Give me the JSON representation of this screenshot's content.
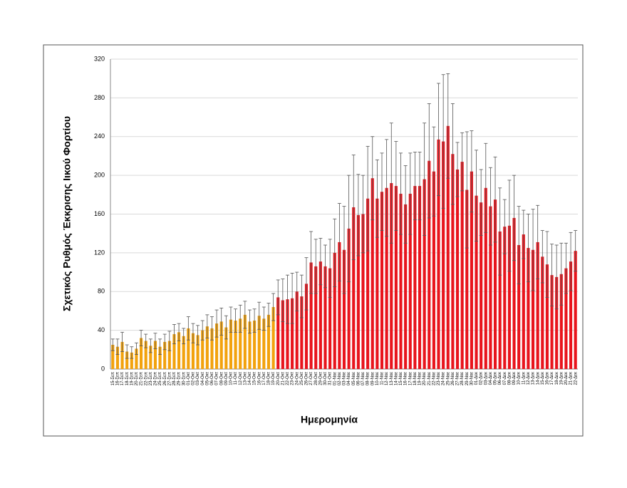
{
  "chart_data": {
    "type": "bar",
    "y_label": "Σχετικός Ρυθμός Έκκρισης Ιικού Φορτίου",
    "x_label": "Ημερομηνία",
    "categories": [
      "15-Σεπ",
      "16-Σεπ",
      "17-Σεπ",
      "18-Σεπ",
      "19-Σεπ",
      "20-Σεπ",
      "21-Σεπ",
      "22-Σεπ",
      "23-Σεπ",
      "24-Σεπ",
      "25-Σεπ",
      "26-Σεπ",
      "27-Σεπ",
      "28-Σεπ",
      "29-Σεπ",
      "30-Σεπ",
      "01-Οκτ",
      "02-Οκτ",
      "03-Οκτ",
      "04-Οκτ",
      "05-Οκτ",
      "06-Οκτ",
      "07-Οκτ",
      "08-Οκτ",
      "09-Οκτ",
      "10-Οκτ",
      "11-Οκτ",
      "12-Οκτ",
      "13-Οκτ",
      "14-Οκτ",
      "15-Οκτ",
      "16-Οκτ",
      "17-Οκτ",
      "18-Οκτ",
      "19-Οκτ",
      "20-Οκτ",
      "21-Οκτ",
      "22-Οκτ",
      "23-Οκτ",
      "24-Οκτ",
      "25-Οκτ",
      "26-Οκτ",
      "27-Οκτ",
      "28-Οκτ",
      "29-Οκτ",
      "30-Οκτ",
      "31-Οκτ",
      "01-Νοε",
      "02-Νοε",
      "03-Νοε",
      "04-Νοε",
      "05-Νοε",
      "06-Νοε",
      "07-Νοε",
      "08-Νοε",
      "09-Νοε",
      "10-Νοε",
      "11-Νοε",
      "12-Νοε",
      "13-Νοε",
      "14-Νοε",
      "15-Νοε",
      "16-Νοε",
      "17-Νοε",
      "18-Νοε",
      "19-Νοε",
      "20-Νοε",
      "21-Νοε",
      "22-Νοε",
      "23-Νοε",
      "24-Νοε",
      "25-Νοε",
      "26-Νοε",
      "27-Νοε",
      "28-Νοε",
      "29-Νοε",
      "30-Νοε",
      "01-Δεκ",
      "02-Δεκ",
      "03-Δεκ",
      "04-Δεκ",
      "05-Δεκ",
      "06-Δεκ",
      "07-Δεκ",
      "08-Δεκ",
      "09-Δεκ",
      "10-Δεκ",
      "11-Δεκ",
      "12-Δεκ",
      "13-Δεκ",
      "14-Δεκ",
      "15-Δεκ",
      "16-Δεκ",
      "17-Δεκ",
      "18-Δεκ",
      "19-Δεκ",
      "20-Δεκ",
      "21-Δεκ",
      "22-Δεκ"
    ],
    "series": [
      {
        "color": "#f2a20d",
        "values": [
          25,
          23,
          28,
          18,
          17,
          21,
          32,
          29,
          24,
          29,
          23,
          28,
          29,
          36,
          38,
          34,
          42,
          37,
          35,
          40,
          44,
          42,
          47,
          49,
          43,
          51,
          50,
          52,
          56,
          49,
          50,
          55,
          52,
          56,
          64,
          null,
          null,
          null,
          null,
          null,
          null,
          null,
          null,
          null,
          null,
          null,
          null,
          null,
          null,
          null,
          null,
          null,
          null,
          null,
          null,
          null,
          null,
          null,
          null,
          null,
          null,
          null,
          null,
          null,
          null,
          null,
          null,
          null,
          null,
          null,
          null,
          null,
          null,
          null,
          null,
          null,
          null,
          null,
          null,
          null,
          null,
          null,
          null,
          null,
          null,
          null,
          null,
          null,
          null,
          null,
          null,
          null,
          null,
          null,
          null,
          null,
          null,
          null,
          null
        ],
        "errors": [
          6,
          8,
          10,
          7,
          6,
          6,
          8,
          7,
          7,
          8,
          8,
          8,
          10,
          10,
          9,
          8,
          12,
          10,
          10,
          10,
          12,
          12,
          14,
          14,
          12,
          13,
          12,
          14,
          14,
          12,
          12,
          14,
          12,
          12,
          14,
          null,
          null,
          null,
          null,
          null,
          null,
          null,
          null,
          null,
          null,
          null,
          null,
          null,
          null,
          null,
          null,
          null,
          null,
          null,
          null,
          null,
          null,
          null,
          null,
          null,
          null,
          null,
          null,
          null,
          null,
          null,
          null,
          null,
          null,
          null,
          null,
          null,
          null,
          null,
          null,
          null,
          null,
          null,
          null,
          null,
          null,
          null,
          null,
          null,
          null,
          null,
          null,
          null,
          null,
          null,
          null,
          null,
          null,
          null,
          null,
          null,
          null,
          null,
          null
        ]
      },
      {
        "color": "#e8141c",
        "values": [
          null,
          null,
          null,
          null,
          null,
          null,
          null,
          null,
          null,
          null,
          null,
          null,
          null,
          null,
          null,
          null,
          null,
          null,
          null,
          null,
          null,
          null,
          null,
          null,
          null,
          null,
          null,
          null,
          null,
          null,
          null,
          null,
          null,
          null,
          null,
          74,
          71,
          72,
          73,
          80,
          75,
          88,
          110,
          106,
          111,
          106,
          104,
          120,
          131,
          123,
          145,
          167,
          159,
          160,
          176,
          197,
          176,
          183,
          187,
          192,
          189,
          181,
          170,
          181,
          189,
          189,
          196,
          215,
          204,
          237,
          235,
          251,
          222,
          206,
          214,
          185,
          204,
          179,
          172,
          187,
          168,
          175,
          142,
          147,
          148,
          156,
          128,
          139,
          125,
          123,
          131,
          116,
          108,
          97,
          95,
          98,
          104,
          111,
          122
        ],
        "errors": [
          null,
          null,
          null,
          null,
          null,
          null,
          null,
          null,
          null,
          null,
          null,
          null,
          null,
          null,
          null,
          null,
          null,
          null,
          null,
          null,
          null,
          null,
          null,
          null,
          null,
          null,
          null,
          null,
          null,
          null,
          null,
          null,
          null,
          null,
          null,
          18,
          22,
          25,
          26,
          20,
          22,
          27,
          32,
          28,
          24,
          22,
          30,
          35,
          40,
          45,
          55,
          54,
          42,
          40,
          54,
          43,
          40,
          40,
          50,
          62,
          46,
          42,
          40,
          42,
          35,
          35,
          58,
          59,
          46,
          58,
          69,
          54,
          52,
          28,
          30,
          60,
          42,
          47,
          34,
          46,
          40,
          44,
          45,
          28,
          47,
          44,
          40,
          25,
          35,
          42,
          38,
          27,
          34,
          32,
          33,
          32,
          26,
          30,
          21
        ]
      }
    ],
    "ylim": [
      0,
      320
    ],
    "yticks": [
      0,
      40,
      80,
      120,
      160,
      200,
      240,
      280,
      320
    ],
    "grid": true
  }
}
